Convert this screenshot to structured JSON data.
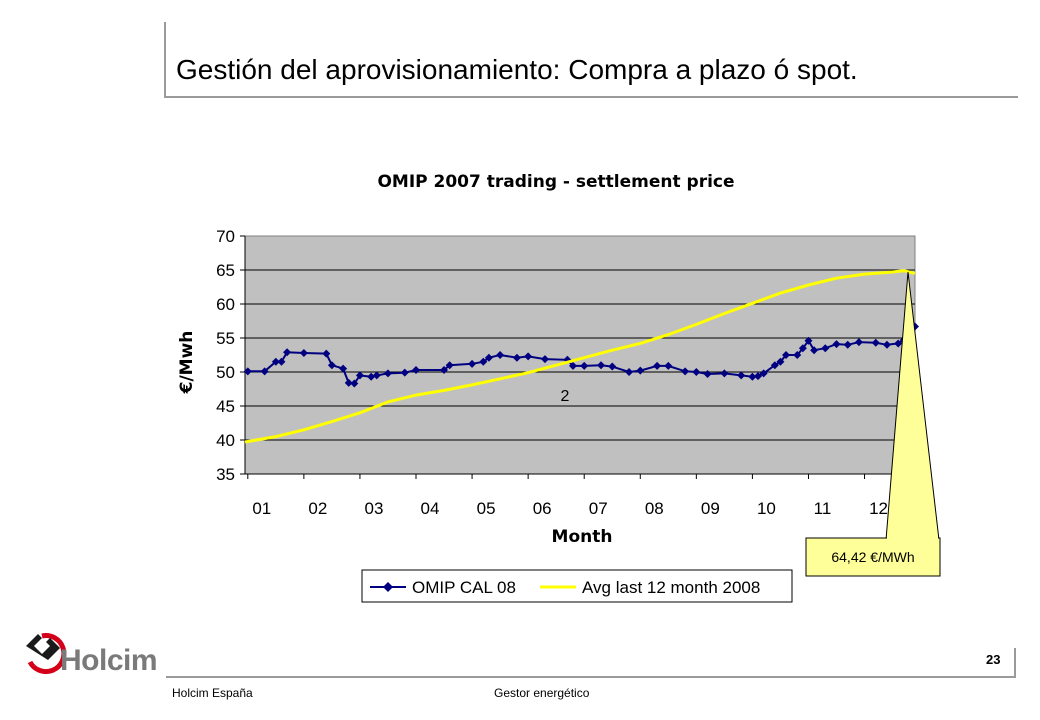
{
  "slide": {
    "title": "Gestión del aprovisionamiento: Compra a plazo ó spot.",
    "page_number": "23",
    "footer_company": "Holcim España",
    "footer_subject": "Gestor energético",
    "brand": "Holcim",
    "colors": {
      "accent_red": "#d4001a",
      "rule_grey": "#9a9a9a"
    }
  },
  "chart_data": {
    "type": "line",
    "title": "OMIP 2007 trading - settlement price",
    "xlabel": "Month",
    "ylabel": "€/Mwh",
    "ylim": [
      35,
      70
    ],
    "yticks": [
      35,
      40,
      45,
      50,
      55,
      60,
      65,
      70
    ],
    "xlim": [
      0.95,
      12.9
    ],
    "categories": [
      "01",
      "02",
      "03",
      "04",
      "05",
      "06",
      "07",
      "08",
      "09",
      "10",
      "11",
      "12"
    ],
    "grid": true,
    "plot_background": "#c0c0c0",
    "legend_position": "bottom",
    "annotation_marker": "2",
    "callout": {
      "text": "64,42 €/MWh",
      "x": 12.7,
      "y": 64.9
    },
    "series": [
      {
        "name": "OMIP CAL 08",
        "color": "#000080",
        "marker": "diamond",
        "points": [
          [
            1.0,
            50.1
          ],
          [
            1.3,
            50.1
          ],
          [
            1.5,
            51.5
          ],
          [
            1.6,
            51.5
          ],
          [
            1.7,
            52.9
          ],
          [
            2.0,
            52.8
          ],
          [
            2.4,
            52.7
          ],
          [
            2.5,
            51.0
          ],
          [
            2.7,
            50.5
          ],
          [
            2.8,
            48.4
          ],
          [
            2.9,
            48.3
          ],
          [
            3.0,
            49.5
          ],
          [
            3.2,
            49.3
          ],
          [
            3.3,
            49.5
          ],
          [
            3.5,
            49.8
          ],
          [
            3.8,
            49.9
          ],
          [
            4.0,
            50.3
          ],
          [
            4.5,
            50.3
          ],
          [
            4.6,
            51.0
          ],
          [
            5.0,
            51.2
          ],
          [
            5.2,
            51.5
          ],
          [
            5.3,
            52.1
          ],
          [
            5.5,
            52.5
          ],
          [
            5.8,
            52.1
          ],
          [
            6.0,
            52.3
          ],
          [
            6.3,
            51.9
          ],
          [
            6.7,
            51.8
          ],
          [
            6.8,
            50.9
          ],
          [
            7.0,
            50.9
          ],
          [
            7.3,
            51.0
          ],
          [
            7.5,
            50.8
          ],
          [
            7.8,
            50.0
          ],
          [
            8.0,
            50.2
          ],
          [
            8.3,
            50.9
          ],
          [
            8.5,
            50.9
          ],
          [
            8.8,
            50.1
          ],
          [
            9.0,
            50.0
          ],
          [
            9.2,
            49.7
          ],
          [
            9.5,
            49.8
          ],
          [
            9.8,
            49.5
          ],
          [
            10.0,
            49.3
          ],
          [
            10.1,
            49.4
          ],
          [
            10.2,
            49.8
          ],
          [
            10.4,
            51.0
          ],
          [
            10.5,
            51.5
          ],
          [
            10.6,
            52.5
          ],
          [
            10.8,
            52.5
          ],
          [
            10.9,
            53.5
          ],
          [
            11.0,
            54.6
          ],
          [
            11.1,
            53.2
          ],
          [
            11.3,
            53.5
          ],
          [
            11.5,
            54.1
          ],
          [
            11.7,
            54.0
          ],
          [
            11.9,
            54.4
          ],
          [
            12.2,
            54.3
          ],
          [
            12.4,
            54.0
          ],
          [
            12.6,
            54.2
          ],
          [
            12.7,
            54.7
          ],
          [
            12.8,
            53.9
          ],
          [
            12.9,
            56.7
          ]
        ]
      },
      {
        "name": "Avg last 12 month 2008",
        "color": "#ffff00",
        "marker": "none",
        "points": [
          [
            0.95,
            39.7
          ],
          [
            1.5,
            40.5
          ],
          [
            2.0,
            41.5
          ],
          [
            2.5,
            42.7
          ],
          [
            3.0,
            44.0
          ],
          [
            3.5,
            45.6
          ],
          [
            4.0,
            46.6
          ],
          [
            4.5,
            47.3
          ],
          [
            5.0,
            48.1
          ],
          [
            5.5,
            49.0
          ],
          [
            6.0,
            49.9
          ],
          [
            6.5,
            51.0
          ],
          [
            7.0,
            52.1
          ],
          [
            7.5,
            53.2
          ],
          [
            8.0,
            54.2
          ],
          [
            8.5,
            55.5
          ],
          [
            9.0,
            57.0
          ],
          [
            9.5,
            58.6
          ],
          [
            10.0,
            60.1
          ],
          [
            10.5,
            61.6
          ],
          [
            11.0,
            62.8
          ],
          [
            11.5,
            63.8
          ],
          [
            12.0,
            64.4
          ],
          [
            12.5,
            64.7
          ],
          [
            12.7,
            64.9
          ],
          [
            12.9,
            64.5
          ]
        ]
      }
    ]
  }
}
